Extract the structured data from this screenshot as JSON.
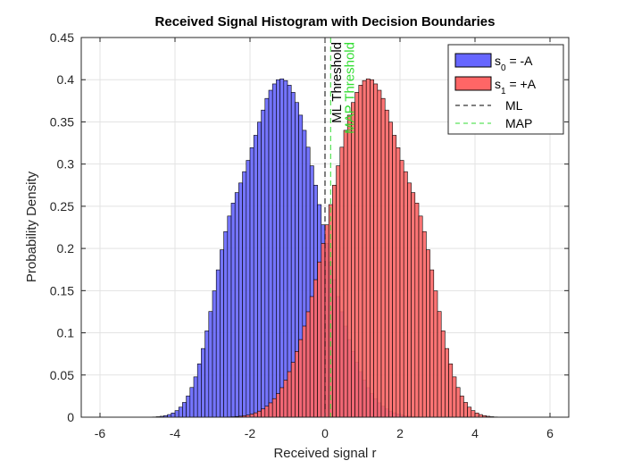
{
  "chart_data": {
    "type": "bar",
    "title": "Received Signal Histogram with Decision Boundaries",
    "xlabel": "Received signal r",
    "ylabel": "Probability Density",
    "xlim": [
      -6.5,
      6.5
    ],
    "ylim": [
      0,
      0.45
    ],
    "xticks": [
      -6,
      -4,
      -2,
      0,
      2,
      4,
      6
    ],
    "yticks": [
      0,
      0.05,
      0.1,
      0.15,
      0.2,
      0.25,
      0.3,
      0.35,
      0.4,
      0.45
    ],
    "xtick_labels": [
      "-6",
      "-4",
      "-2",
      "0",
      "2",
      "4",
      "6"
    ],
    "ytick_labels": [
      "0",
      "0.05",
      "0.1",
      "0.15",
      "0.2",
      "0.25",
      "0.3",
      "0.35",
      "0.4",
      "0.45"
    ],
    "grid": true,
    "legend_position": "top-right",
    "series": [
      {
        "name_main": "s",
        "name_sub": "0",
        "name_suffix": " = -A",
        "color": "#6666ff",
        "bin_width": 0.1,
        "x_centers": [
          -4.55,
          -4.45,
          -4.35,
          -4.25,
          -4.15,
          -4.05,
          -3.95,
          -3.85,
          -3.75,
          -3.65,
          -3.55,
          -3.45,
          -3.35,
          -3.25,
          -3.15,
          -3.05,
          -2.95,
          -2.85,
          -2.75,
          -2.65,
          -2.55,
          -2.45,
          -2.35,
          -2.25,
          -2.15,
          -2.05,
          -1.95,
          -1.85,
          -1.75,
          -1.65,
          -1.55,
          -1.45,
          -1.35,
          -1.25,
          -1.15,
          -1.05,
          -0.95,
          -0.85,
          -0.75,
          -0.65,
          -0.55,
          -0.45,
          -0.35,
          -0.25,
          -0.15,
          -0.05,
          0.05,
          0.15,
          0.25,
          0.35,
          0.45,
          0.55,
          0.65,
          0.75,
          0.85,
          0.95,
          1.05,
          1.15,
          1.25,
          1.35,
          1.45,
          1.55,
          1.65,
          1.75,
          1.85,
          1.95,
          2.05,
          2.15,
          2.25,
          2.35,
          2.45,
          2.55
        ],
        "values": [
          0.0003,
          0.0006,
          0.0011,
          0.0019,
          0.0031,
          0.005,
          0.0078,
          0.0119,
          0.0175,
          0.0252,
          0.0352,
          0.0478,
          0.0632,
          0.0814,
          0.1023,
          0.1253,
          0.1497,
          0.1746,
          0.1984,
          0.22,
          0.2384,
          0.2537,
          0.2662,
          0.2776,
          0.291,
          0.3044,
          0.3194,
          0.3341,
          0.3497,
          0.364,
          0.3778,
          0.3875,
          0.395,
          0.4,
          0.401,
          0.399,
          0.3935,
          0.385,
          0.373,
          0.358,
          0.34,
          0.32,
          0.298,
          0.275,
          0.252,
          0.228,
          0.206,
          0.184,
          0.163,
          0.143,
          0.125,
          0.108,
          0.092,
          0.078,
          0.065,
          0.054,
          0.044,
          0.035,
          0.028,
          0.022,
          0.017,
          0.013,
          0.0098,
          0.0072,
          0.0052,
          0.0037,
          0.0026,
          0.0018,
          0.0012,
          0.0008,
          0.0005,
          0.0003
        ]
      },
      {
        "name_main": "s",
        "name_sub": "1",
        "name_suffix": " = +A",
        "color": "#ff6666",
        "bin_width": 0.1,
        "x_centers": [
          -2.55,
          -2.45,
          -2.35,
          -2.25,
          -2.15,
          -2.05,
          -1.95,
          -1.85,
          -1.75,
          -1.65,
          -1.55,
          -1.45,
          -1.35,
          -1.25,
          -1.15,
          -1.05,
          -0.95,
          -0.85,
          -0.75,
          -0.65,
          -0.55,
          -0.45,
          -0.35,
          -0.25,
          -0.15,
          -0.05,
          0.05,
          0.15,
          0.25,
          0.35,
          0.45,
          0.55,
          0.65,
          0.75,
          0.85,
          0.95,
          1.05,
          1.15,
          1.25,
          1.35,
          1.45,
          1.55,
          1.65,
          1.75,
          1.85,
          1.95,
          2.05,
          2.15,
          2.25,
          2.35,
          2.45,
          2.55,
          2.65,
          2.75,
          2.85,
          2.95,
          3.05,
          3.15,
          3.25,
          3.35,
          3.45,
          3.55,
          3.65,
          3.75,
          3.85,
          3.95,
          4.05,
          4.15,
          4.25,
          4.35,
          4.45,
          4.55
        ],
        "values": [
          0.0003,
          0.0005,
          0.0008,
          0.0012,
          0.0018,
          0.0026,
          0.0037,
          0.0052,
          0.0072,
          0.0098,
          0.013,
          0.017,
          0.022,
          0.028,
          0.035,
          0.044,
          0.054,
          0.065,
          0.078,
          0.092,
          0.108,
          0.125,
          0.143,
          0.163,
          0.184,
          0.206,
          0.228,
          0.252,
          0.275,
          0.298,
          0.32,
          0.34,
          0.358,
          0.373,
          0.385,
          0.3935,
          0.399,
          0.401,
          0.4,
          0.395,
          0.3875,
          0.3778,
          0.364,
          0.3497,
          0.3341,
          0.3194,
          0.3044,
          0.291,
          0.2776,
          0.2662,
          0.2537,
          0.2384,
          0.22,
          0.1984,
          0.1746,
          0.1497,
          0.1253,
          0.1023,
          0.0814,
          0.0632,
          0.0478,
          0.0352,
          0.0252,
          0.0175,
          0.0119,
          0.0078,
          0.005,
          0.0031,
          0.0019,
          0.0011,
          0.0006,
          0.0003
        ]
      }
    ],
    "thresholds": [
      {
        "name": "ML",
        "x": 0.0,
        "color": "#000000",
        "style": "dashed",
        "label": "ML Threshold"
      },
      {
        "name": "MAP",
        "x": 0.15,
        "color": "#33dd33",
        "style": "dashed",
        "label": "MAP Threshold"
      }
    ]
  }
}
